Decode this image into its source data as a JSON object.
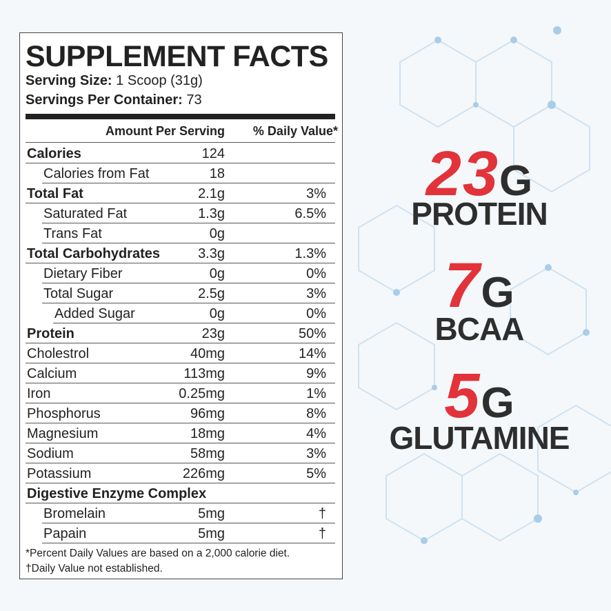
{
  "facts": {
    "title": "SUPPLEMENT FACTS",
    "serving_size": [
      "Serving Size:",
      "1 Scoop (31g)"
    ],
    "servings_per_container": [
      "Servings Per Container:",
      "73"
    ],
    "header": [
      "Amount Per Serving",
      "% Daily Value*"
    ],
    "rows": [
      [
        "Calories",
        "124"
      ],
      [
        "Calories from Fat",
        "18"
      ],
      [
        "Total Fat",
        "2.1g",
        "3%"
      ],
      [
        "Saturated Fat",
        "1.3g",
        "6.5%"
      ],
      [
        "Trans Fat",
        "0g"
      ],
      [
        "Total Carbohydrates",
        "3.3g",
        "1.3%"
      ],
      [
        "Dietary Fiber",
        "0g",
        "0%"
      ],
      [
        "Total Sugar",
        "2.5g",
        "3%"
      ],
      [
        "Added Sugar",
        "0g",
        "0%"
      ],
      [
        "Protein",
        "23g",
        "50%"
      ],
      [
        "Cholestrol",
        "40mg",
        "14%"
      ],
      [
        "Calcium",
        "113mg",
        "9%"
      ],
      [
        "Iron",
        "0.25mg",
        "1%"
      ],
      [
        "Phosphorus",
        "96mg",
        "8%"
      ],
      [
        "Magnesium",
        "18mg",
        "4%"
      ],
      [
        "Sodium",
        "58mg",
        "3%"
      ],
      [
        "Potassium",
        "226mg",
        "5%"
      ],
      [
        "Digestive Enzyme Complex"
      ],
      [
        "Bromelain",
        "5mg",
        "†"
      ],
      [
        "Papain",
        "5mg",
        "†"
      ]
    ],
    "footnotes": [
      "*Percent Daily Values are based on a 2,000 calorie diet.",
      "†Daily Value not established."
    ]
  },
  "highlights": [
    {
      "number": "23",
      "unit": "G",
      "label": "PROTEIN"
    },
    {
      "number": "7",
      "unit": "G",
      "label": "BCAA"
    },
    {
      "number": "5",
      "unit": "G",
      "label": "GLUTAMINE"
    }
  ]
}
